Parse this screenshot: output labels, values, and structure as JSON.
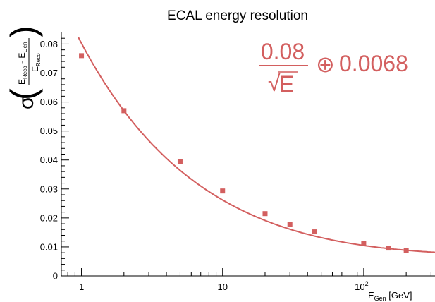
{
  "chart_data": {
    "type": "scatter",
    "title": "ECAL energy resolution",
    "xlabel": {
      "main": "E",
      "sub": "Gen",
      "unit": " [GeV]"
    },
    "ylabel": {
      "sigma": "σ",
      "num_main": "E",
      "num_sub1": "Reco",
      "num_minus": " - E",
      "num_sub2": "Gen",
      "den_main": "E",
      "den_sub": "Reco"
    },
    "xscale": "log",
    "xlim": [
      0.72,
      320
    ],
    "ylim": [
      0,
      0.084
    ],
    "yticks": [
      0,
      0.01,
      0.02,
      0.03,
      0.04,
      0.05,
      0.06,
      0.07,
      0.08
    ],
    "ytick_labels": [
      "0",
      "0.01",
      "0.02",
      "0.03",
      "0.04",
      "0.05",
      "0.06",
      "0.07",
      "0.08"
    ],
    "xticks": [
      1,
      10,
      100
    ],
    "xtick_labels": [
      {
        "main": "1",
        "sup": ""
      },
      {
        "main": "10",
        "sup": ""
      },
      {
        "main": "10",
        "sup": "2"
      }
    ],
    "series": [
      {
        "marker": "square",
        "color": "#d35f5f",
        "x": [
          1,
          2,
          5,
          10,
          20,
          30,
          45,
          100,
          150,
          200
        ],
        "y": [
          0.076,
          0.057,
          0.0395,
          0.0293,
          0.0215,
          0.0178,
          0.0152,
          0.0113,
          0.0096,
          0.0088
        ]
      }
    ],
    "fit": {
      "color": "#d35f5f",
      "formula": "sqrt((a/sqrt(E))^2 + b^2)",
      "a": 0.08,
      "b": 0.0068
    },
    "annotation": {
      "numerator": "0.08",
      "denominator": "E",
      "sqrt_symbol": "√",
      "oplus": "⊕",
      "constant": "0.0068",
      "color": "#d35f5f"
    }
  }
}
